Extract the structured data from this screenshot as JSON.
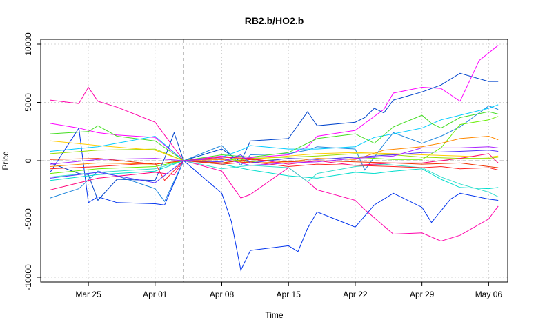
{
  "chart_data": {
    "type": "line",
    "title": "RB2.b/HO2.b",
    "xlabel": "Time",
    "ylabel": "Price",
    "x_ticks": [
      "Mar 25",
      "Apr 01",
      "Apr 08",
      "Apr 15",
      "Apr 22",
      "Apr 29",
      "May 06"
    ],
    "y_ticks": [
      "-10000",
      "-5000",
      "0",
      "5000",
      "10000"
    ],
    "xlim": [
      "2024-03-20",
      "2024-05-08"
    ],
    "ylim": [
      -10000,
      10000
    ],
    "grid": true,
    "reference_lines": {
      "vertical_date": "2024-04-04",
      "horizontal_value": 0
    },
    "series": [
      {
        "color": "#ff00aa",
        "x": [
          "2024-03-21",
          "2024-03-24",
          "2024-03-25",
          "2024-03-26",
          "2024-03-28",
          "2024-04-01",
          "2024-04-04",
          "2024-04-08",
          "2024-04-10",
          "2024-04-11",
          "2024-04-15",
          "2024-04-17",
          "2024-04-18",
          "2024-04-22",
          "2024-04-23",
          "2024-04-26",
          "2024-04-29",
          "2024-05-01",
          "2024-05-03",
          "2024-05-06",
          "2024-05-07"
        ],
        "values": [
          5200,
          4900,
          6300,
          5100,
          4600,
          3300,
          0,
          -900,
          -3200,
          -2900,
          -600,
          -1800,
          -2500,
          -3400,
          -4200,
          -6300,
          -6200,
          -6900,
          -6400,
          -5000,
          -3900
        ]
      },
      {
        "color": "#ff00ff",
        "x": [
          "2024-03-21",
          "2024-03-24",
          "2024-03-26",
          "2024-03-28",
          "2024-04-01",
          "2024-04-04",
          "2024-04-08",
          "2024-04-10",
          "2024-04-15",
          "2024-04-17",
          "2024-04-18",
          "2024-04-22",
          "2024-04-23",
          "2024-04-25",
          "2024-04-26",
          "2024-04-29",
          "2024-05-01",
          "2024-05-03",
          "2024-05-05",
          "2024-05-07"
        ],
        "values": [
          3200,
          2800,
          2400,
          2200,
          2000,
          0,
          400,
          200,
          500,
          1200,
          2100,
          2600,
          3200,
          4400,
          5800,
          6300,
          6200,
          5100,
          8600,
          9900
        ]
      },
      {
        "color": "#0033ee",
        "x": [
          "2024-03-21",
          "2024-03-24",
          "2024-03-25",
          "2024-03-26",
          "2024-03-28",
          "2024-04-01",
          "2024-04-02",
          "2024-04-04",
          "2024-04-08",
          "2024-04-09",
          "2024-04-10",
          "2024-04-11",
          "2024-04-15",
          "2024-04-16",
          "2024-04-17",
          "2024-04-18",
          "2024-04-22",
          "2024-04-24",
          "2024-04-26",
          "2024-04-29",
          "2024-04-30",
          "2024-05-02",
          "2024-05-03",
          "2024-05-06",
          "2024-05-07"
        ],
        "values": [
          -1000,
          2800,
          -3600,
          -3100,
          -3600,
          -3700,
          -3800,
          0,
          -2800,
          -5200,
          -9400,
          -7700,
          -7300,
          -7800,
          -5800,
          -4400,
          -5700,
          -3800,
          -2800,
          -4000,
          -5300,
          -3300,
          -2800,
          -3300,
          -3400
        ]
      },
      {
        "color": "#0044cc",
        "x": [
          "2024-03-21",
          "2024-03-24",
          "2024-03-25",
          "2024-03-26",
          "2024-03-28",
          "2024-04-01",
          "2024-04-02",
          "2024-04-03",
          "2024-04-04",
          "2024-04-08",
          "2024-04-10",
          "2024-04-11",
          "2024-04-15",
          "2024-04-17",
          "2024-04-18",
          "2024-04-22",
          "2024-04-23",
          "2024-04-24",
          "2024-04-25",
          "2024-04-26",
          "2024-04-29",
          "2024-05-01",
          "2024-05-03",
          "2024-05-06",
          "2024-05-07"
        ],
        "values": [
          -200,
          -1100,
          -1200,
          -3400,
          -1600,
          -1700,
          200,
          2400,
          0,
          1000,
          -100,
          1700,
          1900,
          4200,
          3000,
          3300,
          3700,
          4500,
          4100,
          5200,
          5900,
          6500,
          7500,
          6800,
          6800
        ]
      },
      {
        "color": "#2288dd",
        "x": [
          "2024-03-21",
          "2024-03-24",
          "2024-03-26",
          "2024-03-28",
          "2024-04-01",
          "2024-04-02",
          "2024-04-04",
          "2024-04-08",
          "2024-04-10",
          "2024-04-11",
          "2024-04-15",
          "2024-04-17",
          "2024-04-18",
          "2024-04-22",
          "2024-04-23",
          "2024-04-25",
          "2024-04-26",
          "2024-04-29",
          "2024-05-01",
          "2024-05-03",
          "2024-05-06",
          "2024-05-07"
        ],
        "values": [
          -3200,
          -2400,
          -900,
          -1300,
          -2400,
          -3500,
          0,
          1300,
          -400,
          500,
          600,
          900,
          1200,
          1000,
          -800,
          1400,
          2400,
          1500,
          2100,
          2900,
          4700,
          4400
        ]
      },
      {
        "color": "#00ccff",
        "x": [
          "2024-03-21",
          "2024-03-26",
          "2024-04-01",
          "2024-04-04",
          "2024-04-08",
          "2024-04-10",
          "2024-04-11",
          "2024-04-15",
          "2024-04-18",
          "2024-04-22",
          "2024-04-24",
          "2024-04-26",
          "2024-04-29",
          "2024-05-01",
          "2024-05-03",
          "2024-05-06",
          "2024-05-07"
        ],
        "values": [
          800,
          1200,
          2100,
          0,
          300,
          900,
          1300,
          1000,
          1000,
          1200,
          2000,
          2300,
          2800,
          3500,
          3900,
          4500,
          4800
        ]
      },
      {
        "color": "#00ddcc",
        "x": [
          "2024-03-21",
          "2024-03-26",
          "2024-04-01",
          "2024-04-04",
          "2024-04-08",
          "2024-04-11",
          "2024-04-15",
          "2024-04-18",
          "2024-04-22",
          "2024-04-24",
          "2024-04-26",
          "2024-04-29",
          "2024-05-01",
          "2024-05-03",
          "2024-05-06",
          "2024-05-07"
        ],
        "values": [
          -1700,
          -1200,
          -900,
          0,
          -300,
          -800,
          -1300,
          -1500,
          -1000,
          -1100,
          -900,
          -700,
          -1600,
          -2300,
          -2400,
          -2300
        ]
      },
      {
        "color": "#33ddcc",
        "x": [
          "2024-03-21",
          "2024-03-26",
          "2024-04-01",
          "2024-04-04",
          "2024-04-08",
          "2024-04-11",
          "2024-04-15",
          "2024-04-17",
          "2024-04-18",
          "2024-04-22",
          "2024-04-25",
          "2024-04-29",
          "2024-05-01",
          "2024-05-03",
          "2024-05-06",
          "2024-05-07"
        ],
        "values": [
          -1400,
          -1000,
          -700,
          0,
          -700,
          -400,
          -600,
          -1800,
          -1100,
          -500,
          -300,
          -600,
          -1400,
          -2000,
          -2700,
          -3100
        ]
      },
      {
        "color": "#44dd22",
        "x": [
          "2024-03-21",
          "2024-03-25",
          "2024-03-26",
          "2024-03-28",
          "2024-04-01",
          "2024-04-04",
          "2024-04-08",
          "2024-04-11",
          "2024-04-15",
          "2024-04-18",
          "2024-04-22",
          "2024-04-24",
          "2024-04-26",
          "2024-04-29",
          "2024-04-30",
          "2024-05-01",
          "2024-05-03",
          "2024-05-06",
          "2024-05-07"
        ],
        "values": [
          2300,
          2500,
          3000,
          2100,
          1700,
          0,
          500,
          300,
          700,
          1900,
          2300,
          1500,
          2900,
          3900,
          3200,
          2800,
          3700,
          4200,
          4000
        ]
      },
      {
        "color": "#66ee00",
        "x": [
          "2024-03-21",
          "2024-03-26",
          "2024-04-01",
          "2024-04-04",
          "2024-04-08",
          "2024-04-11",
          "2024-04-15",
          "2024-04-18",
          "2024-04-22",
          "2024-04-26",
          "2024-04-29",
          "2024-05-01",
          "2024-05-03",
          "2024-05-06",
          "2024-05-07"
        ],
        "values": [
          -1100,
          -700,
          -500,
          0,
          200,
          -100,
          200,
          100,
          300,
          100,
          100,
          1100,
          3100,
          3500,
          3800
        ]
      },
      {
        "color": "#99dd00",
        "x": [
          "2024-03-21",
          "2024-03-26",
          "2024-04-01",
          "2024-04-04",
          "2024-04-08",
          "2024-04-11",
          "2024-04-15",
          "2024-04-18",
          "2024-04-22",
          "2024-04-26",
          "2024-04-29",
          "2024-05-03",
          "2024-05-06",
          "2024-05-07"
        ],
        "values": [
          600,
          900,
          1000,
          0,
          -200,
          200,
          300,
          400,
          600,
          500,
          300,
          200,
          200,
          300
        ]
      },
      {
        "color": "#ff8800",
        "x": [
          "2024-03-21",
          "2024-03-26",
          "2024-04-01",
          "2024-04-04",
          "2024-04-08",
          "2024-04-11",
          "2024-04-15",
          "2024-04-18",
          "2024-04-22",
          "2024-04-25",
          "2024-04-29",
          "2024-05-01",
          "2024-05-03",
          "2024-05-06",
          "2024-05-07"
        ],
        "values": [
          -500,
          -200,
          -300,
          0,
          100,
          -200,
          -100,
          200,
          100,
          900,
          1200,
          1500,
          1900,
          2100,
          1800
        ]
      },
      {
        "color": "#ffcc00",
        "x": [
          "2024-03-21",
          "2024-03-26",
          "2024-04-01",
          "2024-04-04",
          "2024-04-08",
          "2024-04-11",
          "2024-04-15",
          "2024-04-18",
          "2024-04-22",
          "2024-04-26",
          "2024-04-29",
          "2024-05-03",
          "2024-05-06",
          "2024-05-07"
        ],
        "values": [
          1700,
          1300,
          900,
          0,
          300,
          100,
          400,
          600,
          700,
          600,
          500,
          400,
          300,
          400
        ]
      },
      {
        "color": "#ff2222",
        "x": [
          "2024-03-21",
          "2024-03-26",
          "2024-04-01",
          "2024-04-02",
          "2024-04-04",
          "2024-04-08",
          "2024-04-11",
          "2024-04-15",
          "2024-04-18",
          "2024-04-22",
          "2024-04-26",
          "2024-04-29",
          "2024-05-01",
          "2024-05-03",
          "2024-05-06",
          "2024-05-07"
        ],
        "values": [
          -700,
          -500,
          -200,
          -1700,
          0,
          -300,
          -100,
          -500,
          -300,
          -400,
          -500,
          -600,
          -500,
          -700,
          -600,
          -800
        ]
      },
      {
        "color": "#ee3300",
        "x": [
          "2024-03-21",
          "2024-03-26",
          "2024-04-01",
          "2024-04-04",
          "2024-04-08",
          "2024-04-11",
          "2024-04-15",
          "2024-04-18",
          "2024-04-22",
          "2024-04-26",
          "2024-04-29",
          "2024-05-03",
          "2024-05-06",
          "2024-05-07"
        ],
        "values": [
          100,
          200,
          -300,
          0,
          -200,
          100,
          -100,
          0,
          -100,
          -200,
          -300,
          -200,
          -500,
          -600
        ]
      },
      {
        "color": "#ff0077",
        "x": [
          "2024-03-21",
          "2024-03-26",
          "2024-04-01",
          "2024-04-03",
          "2024-04-04",
          "2024-04-08",
          "2024-04-11",
          "2024-04-15",
          "2024-04-18",
          "2024-04-22",
          "2024-04-26",
          "2024-04-29",
          "2024-05-03",
          "2024-05-06",
          "2024-05-07"
        ],
        "values": [
          -2500,
          -1500,
          -1000,
          -1200,
          0,
          300,
          200,
          -300,
          0,
          -400,
          -200,
          -200,
          200,
          600,
          -200
        ]
      },
      {
        "color": "#5533ff",
        "x": [
          "2024-03-21",
          "2024-03-26",
          "2024-04-01",
          "2024-04-04",
          "2024-04-08",
          "2024-04-10",
          "2024-04-11",
          "2024-04-15",
          "2024-04-18",
          "2024-04-22",
          "2024-04-26",
          "2024-04-29",
          "2024-05-03",
          "2024-05-06",
          "2024-05-07"
        ],
        "values": [
          -1500,
          -1000,
          -1900,
          0,
          -100,
          500,
          -200,
          200,
          100,
          300,
          500,
          700,
          800,
          900,
          800
        ]
      },
      {
        "color": "#aa22ff",
        "x": [
          "2024-03-21",
          "2024-03-26",
          "2024-04-01",
          "2024-04-04",
          "2024-04-08",
          "2024-04-11",
          "2024-04-15",
          "2024-04-18",
          "2024-04-22",
          "2024-04-26",
          "2024-04-29",
          "2024-05-03",
          "2024-05-06",
          "2024-05-07"
        ],
        "values": [
          -300,
          100,
          200,
          0,
          200,
          -400,
          -200,
          -100,
          200,
          400,
          1100,
          1100,
          1200,
          1100
        ]
      }
    ]
  }
}
